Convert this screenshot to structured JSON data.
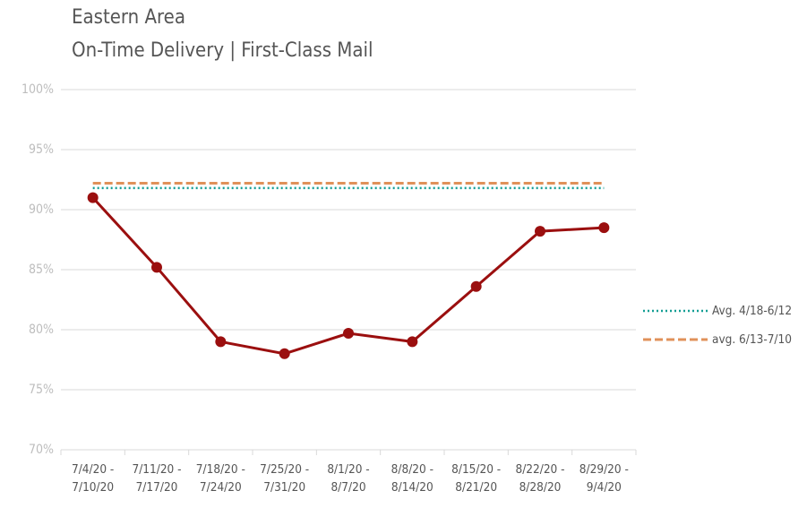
{
  "chart_data": {
    "type": "line",
    "title": "Eastern Area",
    "subtitle": "On-Time Delivery | First-Class Mail",
    "categories": [
      [
        "7/4/20 -",
        "7/10/20"
      ],
      [
        "7/11/20 -",
        "7/17/20"
      ],
      [
        "7/18/20 -",
        "7/24/20"
      ],
      [
        "7/25/20 -",
        "7/31/20"
      ],
      [
        "8/1/20 -",
        "8/7/20"
      ],
      [
        "8/8/20 -",
        "8/14/20"
      ],
      [
        "8/15/20 -",
        "8/21/20"
      ],
      [
        "8/22/20 -",
        "8/28/20"
      ],
      [
        "8/29/20 -",
        "9/4/20"
      ]
    ],
    "series": [
      {
        "name": "On-Time",
        "color": "#9b0f0f",
        "line_style": "solid",
        "markers": true,
        "in_legend": false,
        "values": [
          91.0,
          85.2,
          79.0,
          78.0,
          79.7,
          79.0,
          83.6,
          88.2,
          88.5
        ]
      },
      {
        "name": "Avg. 4/18-6/12",
        "color": "#139e94",
        "line_style": "dotted",
        "markers": false,
        "in_legend": true,
        "values": [
          91.8,
          91.8,
          91.8,
          91.8,
          91.8,
          91.8,
          91.8,
          91.8,
          91.8
        ]
      },
      {
        "name": "avg. 6/13-7/10",
        "color": "#e0915a",
        "line_style": "dashed",
        "markers": false,
        "in_legend": true,
        "values": [
          92.2,
          92.2,
          92.2,
          92.2,
          92.2,
          92.2,
          92.2,
          92.2,
          92.2
        ]
      }
    ],
    "ylim": [
      70,
      100
    ],
    "yticks": [
      {
        "value": 70,
        "label": "70%"
      },
      {
        "value": 75,
        "label": "75%"
      },
      {
        "value": 80,
        "label": "80%"
      },
      {
        "value": 85,
        "label": "85%"
      },
      {
        "value": 90,
        "label": "90%"
      },
      {
        "value": 95,
        "label": "95%"
      },
      {
        "value": 100,
        "label": "100%"
      }
    ],
    "grid": true,
    "legend": "right"
  }
}
